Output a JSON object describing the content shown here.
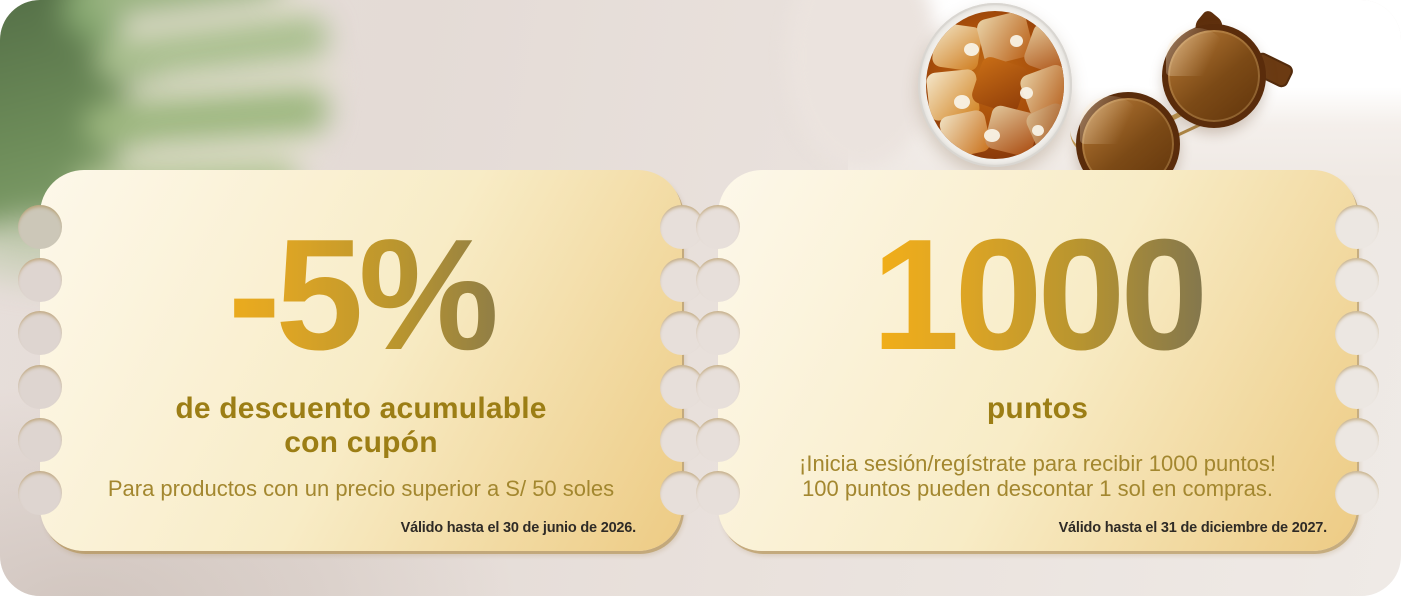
{
  "banner": {
    "type": "promotional-coupons-banner",
    "language": "es"
  },
  "left_coupon": {
    "headline": "-5%",
    "subtitle_line1": "de descuento acumulable",
    "subtitle_line2": "con cupón",
    "description": "Para productos con un precio superior a S/ 50 soles",
    "validity": "Válido hasta el 30 de junio de 2026."
  },
  "right_coupon": {
    "headline": "1000",
    "subtitle": "puntos",
    "description_line1": "¡Inicia sesión/regístrate para recibir 1000 puntos!",
    "description_line2": "100 puntos pueden descontar 1 sol en compras.",
    "validity": "Válido hasta el 31 de diciembre de 2027."
  },
  "decor": {
    "leaf_icon": "blurred-monstera-leaf",
    "photo": "iced-drink-glass-and-round-tortoiseshell-sunglasses"
  },
  "colors": {
    "headline_gradient": [
      "#f7b114",
      "#e2a723",
      "#b9952f",
      "#7e7450"
    ],
    "subtitle": "#9c7e15",
    "description": "#a3872f",
    "validity": "#2f2b26",
    "card_gradient": [
      "#fdf8ea",
      "#f8ecc6",
      "#edcb84"
    ],
    "card_edge": "#c7a96c",
    "backdrop": "#e7deda"
  }
}
